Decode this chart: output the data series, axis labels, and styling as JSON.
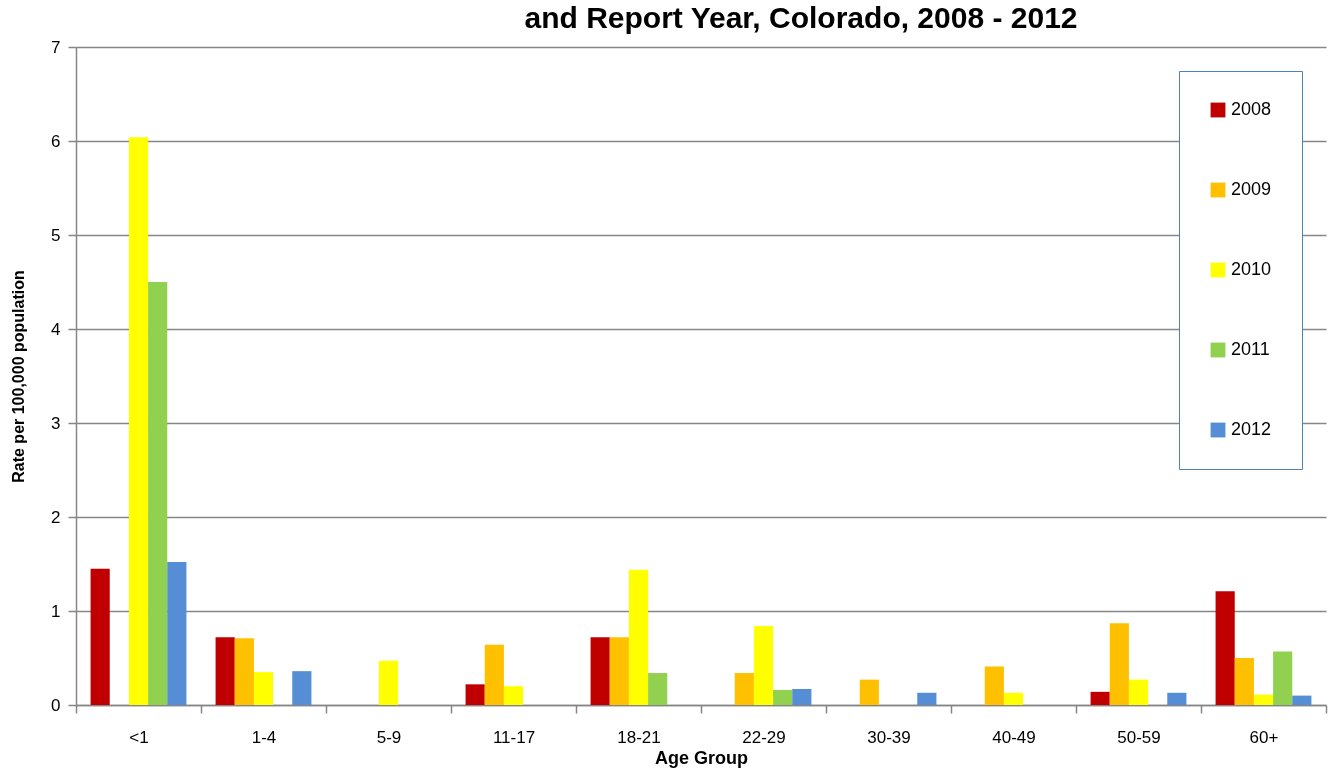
{
  "chart_data": {
    "type": "bar",
    "title": "and Report Year, Colorado, 2008 - 2012",
    "xlabel": "Age Group",
    "ylabel": "Rate per 100,000 population",
    "categories": [
      "<1",
      "1-4",
      "5-9",
      "11-17",
      "18-21",
      "22-29",
      "30-39",
      "40-49",
      "50-59",
      "60+"
    ],
    "series": [
      {
        "name": "2008",
        "color": "#c00000",
        "values": [
          1.45,
          0.72,
          null,
          0.22,
          0.72,
          null,
          null,
          null,
          0.14,
          1.21
        ]
      },
      {
        "name": "2009",
        "color": "#ffc000",
        "values": [
          null,
          0.71,
          null,
          0.64,
          0.72,
          0.34,
          0.27,
          0.41,
          0.87,
          0.5
        ]
      },
      {
        "name": "2010",
        "color": "#ffff00",
        "values": [
          6.04,
          0.35,
          0.47,
          0.2,
          1.44,
          0.84,
          null,
          0.13,
          0.27,
          0.11
        ]
      },
      {
        "name": "2011",
        "color": "#92d050",
        "values": [
          4.5,
          null,
          null,
          null,
          0.34,
          0.16,
          null,
          null,
          null,
          0.57
        ]
      },
      {
        "name": "2012",
        "color": "#558ed5",
        "values": [
          1.52,
          0.36,
          null,
          null,
          null,
          0.17,
          0.13,
          null,
          0.13,
          0.1
        ]
      }
    ],
    "ylim": [
      0,
      7
    ],
    "yticks": [
      0,
      1,
      2,
      3,
      4,
      5,
      6,
      7
    ],
    "grid": "y",
    "legend": "top right"
  }
}
